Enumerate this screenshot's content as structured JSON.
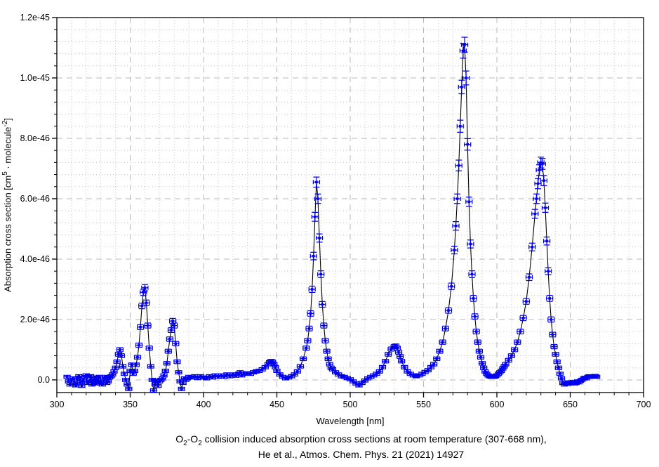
{
  "chart_data": {
    "type": "line",
    "title": "",
    "xlabel": "Wavelength [nm]",
    "ylabel_parts": [
      "Absorption cross section [cm",
      "5",
      " · molecule",
      "-2",
      "]"
    ],
    "xlim": [
      300,
      700
    ],
    "ylim_e46": [
      -0.42,
      12.0
    ],
    "x_major_ticks": [
      300,
      350,
      400,
      450,
      500,
      550,
      600,
      650,
      700
    ],
    "x_minor_step_nm": 10,
    "y_major_ticks": [
      {
        "label": "0.0",
        "value_e46": 0
      },
      {
        "label": "2.0e-46",
        "value_e46": 2
      },
      {
        "label": "4.0e-46",
        "value_e46": 4
      },
      {
        "label": "6.0e-46",
        "value_e46": 6
      },
      {
        "label": "8.0e-46",
        "value_e46": 8
      },
      {
        "label": "1.0e-45",
        "value_e46": 10
      },
      {
        "label": "1.2e-45",
        "value_e46": 12
      }
    ],
    "y_minor_step_e46": 0.4,
    "grid": {
      "major_color": "#b8b8b8",
      "minor_color": "#c6c6c6",
      "major_dash": "8,6",
      "minor_dash": "1,3",
      "frame_color": "#000000"
    },
    "legend": "none",
    "series": [
      {
        "name": "O2-O2 collision induced absorption cross section",
        "marker_color": "#0000ee",
        "line_color": "#000000",
        "value_unit": "1e-46 cm^5 molecule^-2",
        "xerr_nm": 2.15,
        "yerr_e46": {
          "base": 0.05,
          "fraction_of_value": 0.018
        },
        "points_nm_value_e46": [
          [
            307,
            0.1
          ],
          [
            308,
            -0.05
          ],
          [
            309,
            -0.15
          ],
          [
            310,
            0.0
          ],
          [
            311,
            0.05
          ],
          [
            312,
            -0.1
          ],
          [
            313,
            -0.18
          ],
          [
            314,
            0.05
          ],
          [
            315,
            0.12
          ],
          [
            316,
            -0.08
          ],
          [
            317,
            -0.2
          ],
          [
            318,
            0.0
          ],
          [
            319,
            0.1
          ],
          [
            320,
            0.15
          ],
          [
            321,
            -0.1
          ],
          [
            322,
            -0.05
          ],
          [
            323,
            0.12
          ],
          [
            324,
            -0.15
          ],
          [
            325,
            -0.02
          ],
          [
            326,
            0.08
          ],
          [
            327,
            -0.12
          ],
          [
            328,
            -0.05
          ],
          [
            329,
            0.1
          ],
          [
            330,
            -0.08
          ],
          [
            331,
            -0.15
          ],
          [
            332,
            0.05
          ],
          [
            333,
            0.1
          ],
          [
            334,
            -0.1
          ],
          [
            335,
            -0.05
          ],
          [
            336,
            0.08
          ],
          [
            337,
            0.12
          ],
          [
            338,
            0.18
          ],
          [
            339,
            0.28
          ],
          [
            340,
            0.4
          ],
          [
            341,
            0.6
          ],
          [
            342,
            0.85
          ],
          [
            343,
            1.0
          ],
          [
            344,
            0.8
          ],
          [
            345,
            0.45
          ],
          [
            346,
            0.2
          ],
          [
            347,
            0.0
          ],
          [
            348,
            -0.15
          ],
          [
            349,
            -0.3
          ],
          [
            350,
            0.3
          ],
          [
            351,
            0.5
          ],
          [
            352,
            0.2
          ],
          [
            353,
            0.3
          ],
          [
            354,
            0.5
          ],
          [
            355,
            0.75
          ],
          [
            356,
            1.15
          ],
          [
            357,
            1.75
          ],
          [
            358,
            2.45
          ],
          [
            359,
            2.9
          ],
          [
            360,
            3.05
          ],
          [
            361,
            2.55
          ],
          [
            362,
            1.8
          ],
          [
            363,
            1.05
          ],
          [
            364,
            0.45
          ],
          [
            365,
            0.0
          ],
          [
            366,
            -0.35
          ],
          [
            367,
            -0.15
          ],
          [
            368,
            -0.02
          ],
          [
            369,
            -0.2
          ],
          [
            370,
            -0.05
          ],
          [
            371,
            0.0
          ],
          [
            372,
            0.05
          ],
          [
            373,
            0.15
          ],
          [
            374,
            0.3
          ],
          [
            375,
            0.55
          ],
          [
            376,
            0.95
          ],
          [
            377,
            1.35
          ],
          [
            378,
            1.65
          ],
          [
            379,
            1.95
          ],
          [
            380,
            1.8
          ],
          [
            381,
            1.2
          ],
          [
            382,
            0.6
          ],
          [
            383,
            0.25
          ],
          [
            384,
            -0.05
          ],
          [
            385,
            -0.3
          ],
          [
            386,
            -0.1
          ],
          [
            387,
            0.05
          ],
          [
            388,
            0.0
          ],
          [
            389,
            0.05
          ],
          [
            390,
            0.1
          ],
          [
            392,
            0.08
          ],
          [
            394,
            0.12
          ],
          [
            396,
            0.06
          ],
          [
            398,
            0.12
          ],
          [
            400,
            0.08
          ],
          [
            402,
            0.05
          ],
          [
            404,
            0.12
          ],
          [
            406,
            0.08
          ],
          [
            408,
            0.15
          ],
          [
            410,
            0.1
          ],
          [
            412,
            0.15
          ],
          [
            414,
            0.1
          ],
          [
            416,
            0.18
          ],
          [
            418,
            0.12
          ],
          [
            420,
            0.18
          ],
          [
            422,
            0.14
          ],
          [
            424,
            0.2
          ],
          [
            425,
            0.25
          ],
          [
            426,
            0.15
          ],
          [
            428,
            0.2
          ],
          [
            430,
            0.22
          ],
          [
            432,
            0.2
          ],
          [
            434,
            0.25
          ],
          [
            436,
            0.28
          ],
          [
            438,
            0.3
          ],
          [
            440,
            0.35
          ],
          [
            442,
            0.42
          ],
          [
            444,
            0.52
          ],
          [
            445,
            0.58
          ],
          [
            446,
            0.62
          ],
          [
            447,
            0.6
          ],
          [
            448,
            0.52
          ],
          [
            449,
            0.42
          ],
          [
            450,
            0.3
          ],
          [
            452,
            0.18
          ],
          [
            454,
            0.1
          ],
          [
            456,
            0.05
          ],
          [
            458,
            0.08
          ],
          [
            460,
            0.12
          ],
          [
            462,
            0.18
          ],
          [
            464,
            0.28
          ],
          [
            466,
            0.45
          ],
          [
            468,
            0.7
          ],
          [
            470,
            1.05
          ],
          [
            471,
            1.3
          ],
          [
            472,
            1.7
          ],
          [
            473,
            2.2
          ],
          [
            474,
            3.0
          ],
          [
            475,
            4.1
          ],
          [
            476,
            5.4
          ],
          [
            477,
            6.55
          ],
          [
            478,
            6.0
          ],
          [
            479,
            4.7
          ],
          [
            480,
            3.5
          ],
          [
            481,
            2.5
          ],
          [
            482,
            1.8
          ],
          [
            483,
            1.3
          ],
          [
            484,
            0.95
          ],
          [
            485,
            0.7
          ],
          [
            486,
            0.52
          ],
          [
            487,
            0.4
          ],
          [
            488,
            0.35
          ],
          [
            490,
            0.25
          ],
          [
            492,
            0.18
          ],
          [
            494,
            0.12
          ],
          [
            496,
            0.1
          ],
          [
            498,
            0.06
          ],
          [
            500,
            0.02
          ],
          [
            502,
            -0.05
          ],
          [
            504,
            -0.12
          ],
          [
            506,
            -0.18
          ],
          [
            508,
            -0.1
          ],
          [
            510,
            -0.02
          ],
          [
            512,
            0.05
          ],
          [
            514,
            0.1
          ],
          [
            516,
            0.15
          ],
          [
            518,
            0.2
          ],
          [
            520,
            0.28
          ],
          [
            522,
            0.42
          ],
          [
            524,
            0.62
          ],
          [
            526,
            0.85
          ],
          [
            528,
            1.02
          ],
          [
            530,
            1.1
          ],
          [
            531,
            1.12
          ],
          [
            532,
            1.05
          ],
          [
            533,
            0.92
          ],
          [
            534,
            0.78
          ],
          [
            535,
            0.62
          ],
          [
            537,
            0.42
          ],
          [
            539,
            0.28
          ],
          [
            541,
            0.2
          ],
          [
            543,
            0.15
          ],
          [
            545,
            0.12
          ],
          [
            547,
            0.15
          ],
          [
            549,
            0.2
          ],
          [
            551,
            0.26
          ],
          [
            553,
            0.32
          ],
          [
            555,
            0.42
          ],
          [
            557,
            0.52
          ],
          [
            559,
            0.7
          ],
          [
            561,
            0.95
          ],
          [
            563,
            1.25
          ],
          [
            565,
            1.7
          ],
          [
            567,
            2.3
          ],
          [
            569,
            3.1
          ],
          [
            571,
            4.3
          ],
          [
            572,
            5.1
          ],
          [
            573,
            6.0
          ],
          [
            574,
            7.1
          ],
          [
            575,
            8.4
          ],
          [
            576,
            9.7
          ],
          [
            577,
            10.9
          ],
          [
            578,
            11.1
          ],
          [
            579,
            10.0
          ],
          [
            580,
            7.8
          ],
          [
            581,
            5.9
          ],
          [
            582,
            4.5
          ],
          [
            583,
            3.5
          ],
          [
            584,
            2.7
          ],
          [
            585,
            2.1
          ],
          [
            586,
            1.6
          ],
          [
            587,
            1.25
          ],
          [
            588,
            0.95
          ],
          [
            589,
            0.75
          ],
          [
            590,
            0.55
          ],
          [
            591,
            0.4
          ],
          [
            592,
            0.28
          ],
          [
            593,
            0.2
          ],
          [
            594,
            0.15
          ],
          [
            595,
            0.12
          ],
          [
            596,
            0.1
          ],
          [
            597,
            0.1
          ],
          [
            598,
            0.1
          ],
          [
            599,
            0.12
          ],
          [
            600,
            0.15
          ],
          [
            601,
            0.2
          ],
          [
            602,
            0.25
          ],
          [
            603,
            0.3
          ],
          [
            604,
            0.38
          ],
          [
            605,
            0.45
          ],
          [
            606,
            0.52
          ],
          [
            608,
            0.65
          ],
          [
            610,
            0.8
          ],
          [
            612,
            1.0
          ],
          [
            614,
            1.25
          ],
          [
            616,
            1.6
          ],
          [
            618,
            2.05
          ],
          [
            620,
            2.6
          ],
          [
            622,
            3.4
          ],
          [
            624,
            4.4
          ],
          [
            626,
            5.5
          ],
          [
            627,
            6.0
          ],
          [
            628,
            6.5
          ],
          [
            629,
            6.95
          ],
          [
            630,
            7.2
          ],
          [
            631,
            7.15
          ],
          [
            632,
            6.6
          ],
          [
            633,
            5.7
          ],
          [
            634,
            4.6
          ],
          [
            635,
            3.6
          ],
          [
            636,
            2.7
          ],
          [
            637,
            2.0
          ],
          [
            638,
            1.5
          ],
          [
            639,
            1.1
          ],
          [
            640,
            0.85
          ],
          [
            641,
            0.6
          ],
          [
            642,
            0.4
          ],
          [
            643,
            0.2
          ],
          [
            644,
            0.05
          ],
          [
            645,
            -0.1
          ],
          [
            646,
            -0.15
          ],
          [
            647,
            -0.1
          ],
          [
            648,
            -0.13
          ],
          [
            649,
            -0.08
          ],
          [
            650,
            -0.12
          ],
          [
            651,
            -0.1
          ],
          [
            652,
            -0.07
          ],
          [
            653,
            -0.12
          ],
          [
            654,
            -0.1
          ],
          [
            655,
            -0.05
          ],
          [
            656,
            -0.08
          ],
          [
            657,
            -0.03
          ],
          [
            658,
            0.0
          ],
          [
            659,
            0.04
          ],
          [
            660,
            0.07
          ],
          [
            661,
            0.05
          ],
          [
            662,
            0.1
          ],
          [
            663,
            0.12
          ],
          [
            664,
            0.1
          ],
          [
            665,
            0.12
          ],
          [
            666,
            0.1
          ],
          [
            667,
            0.13
          ],
          [
            668,
            0.1
          ]
        ]
      }
    ],
    "caption_line1_parts": [
      "O",
      "2",
      "-O",
      "2",
      " collision induced absorption cross sections at room temperature (307-668 nm),"
    ],
    "caption_line2": "He et al., Atmos. Chem. Phys. 21 (2021) 14927"
  }
}
